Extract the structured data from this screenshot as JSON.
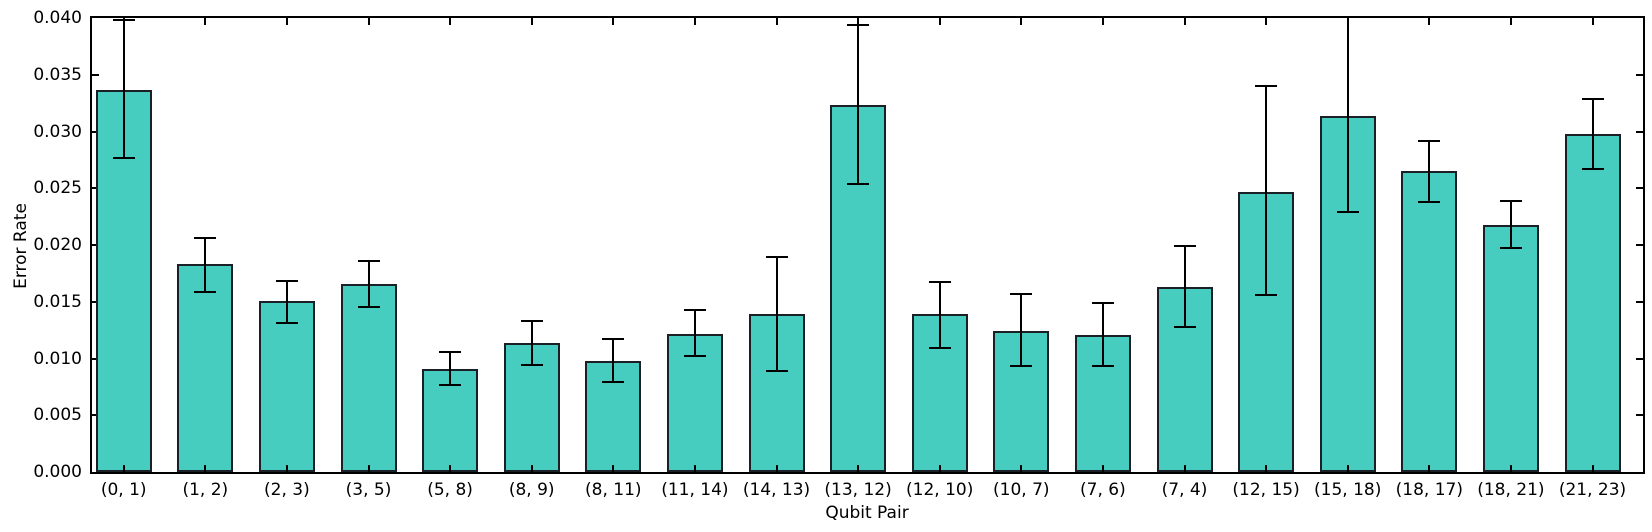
{
  "chart_data": {
    "type": "bar",
    "title": "",
    "xlabel": "Qubit Pair",
    "ylabel": "Error Rate",
    "ylim": [
      0,
      0.04
    ],
    "ytick_step": 0.005,
    "ytick_labels": [
      "0.000",
      "0.005",
      "0.010",
      "0.015",
      "0.020",
      "0.025",
      "0.030",
      "0.035",
      "0.040"
    ],
    "grid": false,
    "legend": "none",
    "bar_color": "#46cdc0",
    "bar_edge_color": "#1b1f26",
    "error_bar_color": "#000000",
    "categories": [
      "(0, 1)",
      "(1, 2)",
      "(2, 3)",
      "(3, 5)",
      "(5, 8)",
      "(8, 9)",
      "(8, 11)",
      "(11, 14)",
      "(14, 13)",
      "(13, 12)",
      "(12, 10)",
      "(10, 7)",
      "(7, 6)",
      "(7, 4)",
      "(12, 15)",
      "(15, 18)",
      "(18, 17)",
      "(18, 21)",
      "(21, 23)"
    ],
    "values": [
      0.0337,
      0.0183,
      0.0151,
      0.0166,
      0.0091,
      0.0114,
      0.0098,
      0.0122,
      0.0139,
      0.0323,
      0.0139,
      0.0124,
      0.0121,
      0.0163,
      0.0247,
      0.0314,
      0.0265,
      0.0218,
      0.0298
    ],
    "error_low": [
      0.0277,
      0.0159,
      0.0131,
      0.0145,
      0.0077,
      0.0094,
      0.0079,
      0.0102,
      0.0089,
      0.0254,
      0.0109,
      0.0093,
      0.0093,
      0.0128,
      0.0156,
      0.0229,
      0.0238,
      0.0197,
      0.0267
    ],
    "error_high": [
      0.0398,
      0.0206,
      0.0168,
      0.0186,
      0.0106,
      0.0133,
      0.0117,
      0.0143,
      0.0189,
      0.0394,
      0.0167,
      0.0157,
      0.0149,
      0.0199,
      0.034,
      0.0401,
      0.0292,
      0.0239,
      0.0329
    ]
  }
}
